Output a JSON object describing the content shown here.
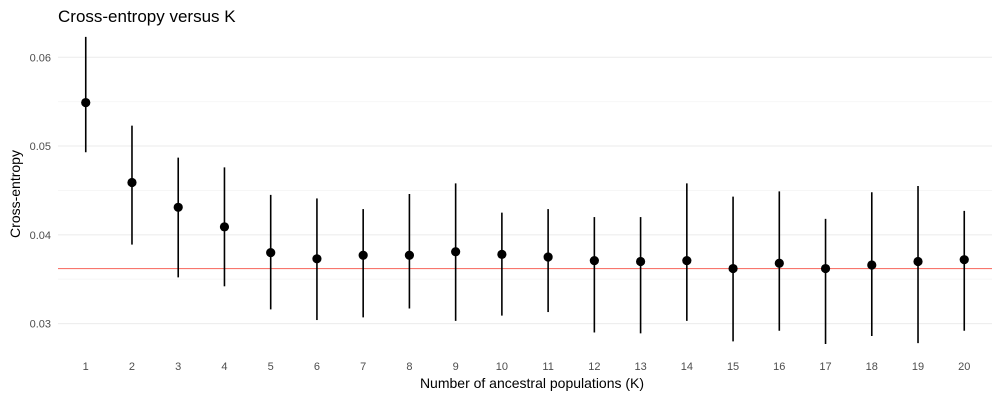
{
  "chart_data": {
    "type": "scatter",
    "title": "Cross-entropy versus K",
    "xlabel": "Number of ancestral populations (K)",
    "ylabel": "Cross-entropy",
    "x": [
      1,
      2,
      3,
      4,
      5,
      6,
      7,
      8,
      9,
      10,
      11,
      12,
      13,
      14,
      15,
      16,
      17,
      18,
      19,
      20
    ],
    "y": [
      0.0549,
      0.0459,
      0.0431,
      0.0409,
      0.038,
      0.0373,
      0.0377,
      0.0377,
      0.0381,
      0.0378,
      0.0375,
      0.0371,
      0.037,
      0.0371,
      0.0362,
      0.0368,
      0.0362,
      0.0366,
      0.037,
      0.0372
    ],
    "ymin": [
      0.0493,
      0.0389,
      0.0352,
      0.0342,
      0.0316,
      0.0304,
      0.0307,
      0.0317,
      0.0303,
      0.0309,
      0.0313,
      0.029,
      0.0289,
      0.0303,
      0.028,
      0.0292,
      0.0277,
      0.0286,
      0.0278,
      0.0292
    ],
    "ymax": [
      0.0623,
      0.0523,
      0.0487,
      0.0476,
      0.0445,
      0.0441,
      0.0429,
      0.0446,
      0.0458,
      0.0425,
      0.0429,
      0.042,
      0.042,
      0.0458,
      0.0443,
      0.0449,
      0.0418,
      0.0448,
      0.0455,
      0.0427
    ],
    "reference_line": 0.0362,
    "reference_color": "#f8766d",
    "ylim": [
      0.0268,
      0.0633
    ],
    "yticks": [
      0.03,
      0.04,
      0.05,
      0.06
    ],
    "ytick_labels": [
      "0.03",
      "0.04",
      "0.05",
      "0.06"
    ],
    "xtick_labels": [
      "1",
      "2",
      "3",
      "4",
      "5",
      "6",
      "7",
      "8",
      "9",
      "10",
      "11",
      "12",
      "13",
      "14",
      "15",
      "16",
      "17",
      "18",
      "19",
      "20"
    ],
    "grid": true,
    "legend": "none"
  }
}
